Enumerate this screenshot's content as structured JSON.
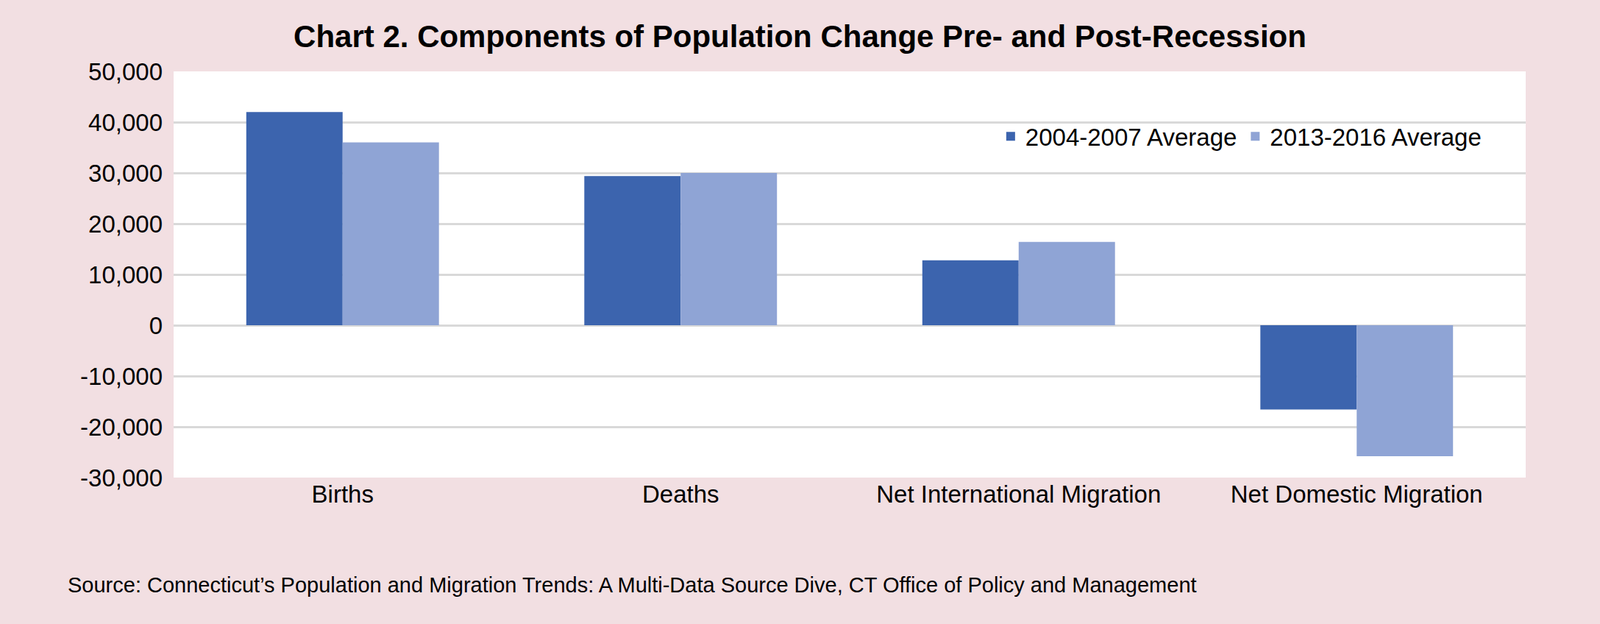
{
  "chart_data": {
    "type": "bar",
    "title": "Chart 2. Components of Population Change Pre- and Post-Recession",
    "source": "Source: Connecticut’s Population and Migration Trends: A Multi-Data Source Dive, CT Office of Policy and Management",
    "categories": [
      "Births",
      "Deaths",
      "Net International Migration",
      "Net Domestic Migration"
    ],
    "series": [
      {
        "name": "2004-2007 Average",
        "color": "#3C64AE",
        "values": [
          42000,
          29400,
          12800,
          -16600
        ]
      },
      {
        "name": "2013-2016 Average",
        "color": "#8FA4D5",
        "values": [
          36000,
          30000,
          16400,
          -25800
        ]
      }
    ],
    "ylim": [
      -30000,
      50000
    ],
    "yticks": [
      {
        "value": -30000,
        "label": "-30,000"
      },
      {
        "value": -20000,
        "label": "-20,000"
      },
      {
        "value": -10000,
        "label": "-10,000"
      },
      0,
      {
        "value": 10000,
        "label": "10,000"
      },
      {
        "value": 20000,
        "label": "20,000"
      },
      {
        "value": 30000,
        "label": "30,000"
      },
      {
        "value": 40000,
        "label": "40,000"
      },
      {
        "value": 50000,
        "label": "50,000"
      }
    ],
    "grid": true,
    "legend": "upper right"
  }
}
